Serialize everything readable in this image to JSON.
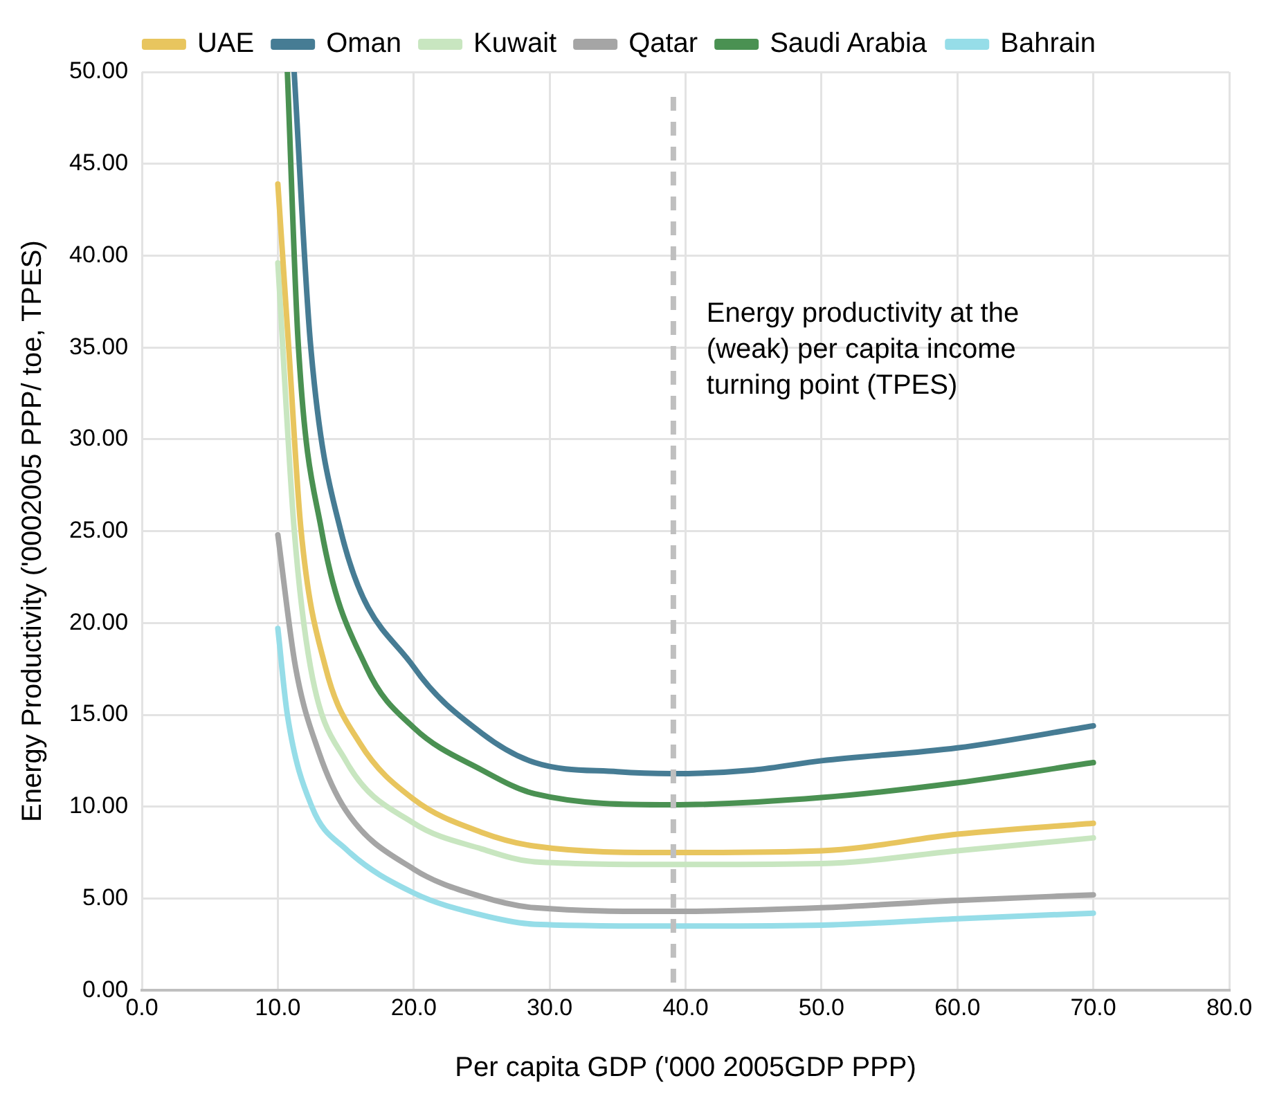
{
  "chart_data": {
    "type": "line",
    "xlabel": "Per capita GDP ('000 2005GDP PPP)",
    "ylabel": "Energy Productivity ('0002005 PPP/ toe, TPES)",
    "xlim": [
      0,
      80
    ],
    "xticks": [
      {
        "value": 0,
        "label": "0.0"
      },
      {
        "value": 10,
        "label": "10.0"
      },
      {
        "value": 20,
        "label": "20.0"
      },
      {
        "value": 30,
        "label": "30.0"
      },
      {
        "value": 40,
        "label": "40.0"
      },
      {
        "value": 50,
        "label": "50.0"
      },
      {
        "value": 60,
        "label": "60.0"
      },
      {
        "value": 70,
        "label": "70.0"
      },
      {
        "value": 80,
        "label": "80.0"
      }
    ],
    "ylim": [
      0,
      50
    ],
    "yticks": [
      {
        "value": 0,
        "label": "0.00"
      },
      {
        "value": 5,
        "label": "5.00"
      },
      {
        "value": 10,
        "label": "10.00"
      },
      {
        "value": 15,
        "label": "15.00"
      },
      {
        "value": 20,
        "label": "20.00"
      },
      {
        "value": 25,
        "label": "25.00"
      },
      {
        "value": 30,
        "label": "30.00"
      },
      {
        "value": 35,
        "label": "35.00"
      },
      {
        "value": 40,
        "label": "40.00"
      },
      {
        "value": 45,
        "label": "45.00"
      },
      {
        "value": 50,
        "label": "50.00"
      }
    ],
    "grid": true,
    "legend": "top",
    "marker": "none",
    "line_style": "solid",
    "ref_lines": [
      {
        "axis": "x",
        "value": 39.1,
        "label": "Energy productivity at the (weak) per capita income turning point (TPES)",
        "color": "#bfbfbf",
        "line_style": "dashed"
      }
    ],
    "series": [
      {
        "name": "UAE",
        "color": "#e8c55e",
        "x": [
          10,
          10.8,
          11.7,
          13.5,
          16,
          20,
          25,
          28.9,
          39,
          50,
          60,
          70
        ],
        "values": [
          43.9,
          35,
          25.1,
          17.6,
          13.5,
          10.4,
          8.6,
          7.85,
          7.5,
          7.6,
          8.5,
          9.1
        ]
      },
      {
        "name": "Oman",
        "color": "#467c94",
        "x": [
          11.2,
          12.4,
          14.6,
          20,
          25,
          28.9,
          35,
          39,
          45,
          50,
          60,
          70
        ],
        "values": [
          50,
          35.2,
          25.1,
          17.6,
          14,
          12.4,
          11.9,
          11.8,
          12,
          12.5,
          13.2,
          14.4
        ]
      },
      {
        "name": "Kuwait",
        "color": "#c8e6c0",
        "x": [
          10,
          11.2,
          12.4,
          15,
          20,
          25,
          28.9,
          39,
          50,
          60,
          70
        ],
        "values": [
          39.6,
          25.1,
          17.6,
          12.5,
          9.1,
          7.7,
          7,
          6.85,
          6.9,
          7.6,
          8.3
        ]
      },
      {
        "name": "Qatar",
        "color": "#a5a5a5",
        "x": [
          10,
          11.3,
          13,
          15,
          20,
          25,
          28.9,
          39,
          50,
          60,
          70
        ],
        "values": [
          24.8,
          17.6,
          13,
          9.8,
          6.6,
          5.1,
          4.5,
          4.3,
          4.5,
          4.9,
          5.2
        ]
      },
      {
        "name": "Saudi Arabia",
        "color": "#4a9152",
        "x": [
          10.7,
          11.5,
          13.2,
          16.5,
          20,
          25,
          28.9,
          39,
          50,
          60,
          70
        ],
        "values": [
          50,
          35.2,
          25.1,
          17.6,
          14.3,
          12,
          10.7,
          10.1,
          10.5,
          11.3,
          12.4
        ]
      },
      {
        "name": "Bahrain",
        "color": "#96dde8",
        "x": [
          10,
          10.7,
          12.5,
          15,
          20,
          25,
          28.9,
          39,
          50,
          60,
          70
        ],
        "values": [
          19.7,
          15,
          10,
          7.7,
          5.3,
          4.1,
          3.6,
          3.5,
          3.55,
          3.9,
          4.2
        ]
      }
    ]
  }
}
